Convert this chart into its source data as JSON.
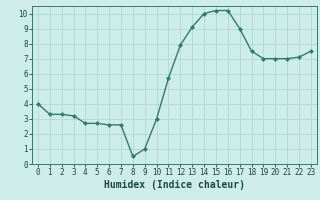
{
  "x": [
    0,
    1,
    2,
    3,
    4,
    5,
    6,
    7,
    8,
    9,
    10,
    11,
    12,
    13,
    14,
    15,
    16,
    17,
    18,
    19,
    20,
    21,
    22,
    23
  ],
  "y": [
    4.0,
    3.3,
    3.3,
    3.2,
    2.7,
    2.7,
    2.6,
    2.6,
    0.5,
    1.0,
    3.0,
    5.7,
    7.9,
    9.1,
    10.0,
    10.2,
    10.2,
    9.0,
    7.5,
    7.0,
    7.0,
    7.0,
    7.1,
    7.5
  ],
  "line_color": "#2e7d6e",
  "marker": "D",
  "markersize": 2.0,
  "linewidth": 1.0,
  "bg_color": "#cdecea",
  "grid_color": "#b0d8d4",
  "xlabel": "Humidex (Indice chaleur)",
  "xlabel_fontsize": 7,
  "xlabel_color": "#1a4a42",
  "xlim": [
    -0.5,
    23.5
  ],
  "ylim": [
    0,
    10.5
  ],
  "yticks": [
    0,
    1,
    2,
    3,
    4,
    5,
    6,
    7,
    8,
    9,
    10
  ],
  "xticks": [
    0,
    1,
    2,
    3,
    4,
    5,
    6,
    7,
    8,
    9,
    10,
    11,
    12,
    13,
    14,
    15,
    16,
    17,
    18,
    19,
    20,
    21,
    22,
    23
  ],
  "tick_fontsize": 5.5,
  "tick_color": "#1a4a42",
  "spine_color": "#2e7d6e"
}
